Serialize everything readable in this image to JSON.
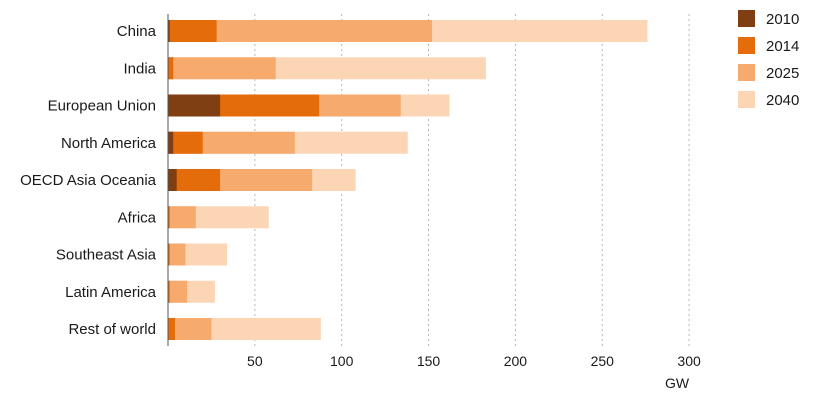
{
  "chart_data": {
    "type": "bar",
    "orientation": "horizontal",
    "stacked": false,
    "layering": "cumulative totals overlaid (later years drawn behind earlier years)",
    "categories": [
      "China",
      "India",
      "European Union",
      "North America",
      "OECD Asia Oceania",
      "Africa",
      "Southeast Asia",
      "Latin America",
      "Rest of world"
    ],
    "series": [
      {
        "name": "2010",
        "color": "#7f3f12",
        "values": [
          1,
          0,
          30,
          3,
          5,
          0,
          0,
          0,
          0
        ]
      },
      {
        "name": "2014",
        "color": "#e46c0a",
        "values": [
          28,
          3,
          87,
          20,
          30,
          1,
          1,
          1,
          4
        ]
      },
      {
        "name": "2025",
        "color": "#f6aa6e",
        "values": [
          152,
          62,
          134,
          73,
          83,
          16,
          10,
          11,
          25
        ]
      },
      {
        "name": "2040",
        "color": "#fcd5b5",
        "values": [
          276,
          183,
          162,
          138,
          108,
          58,
          34,
          27,
          88
        ]
      }
    ],
    "x_ticks": [
      "50",
      "100",
      "150",
      "200",
      "250",
      "300"
    ],
    "xlim": [
      0,
      300
    ],
    "xlabel": "GW",
    "title": "",
    "grid": "vertical dashed",
    "legend_position": "right"
  }
}
